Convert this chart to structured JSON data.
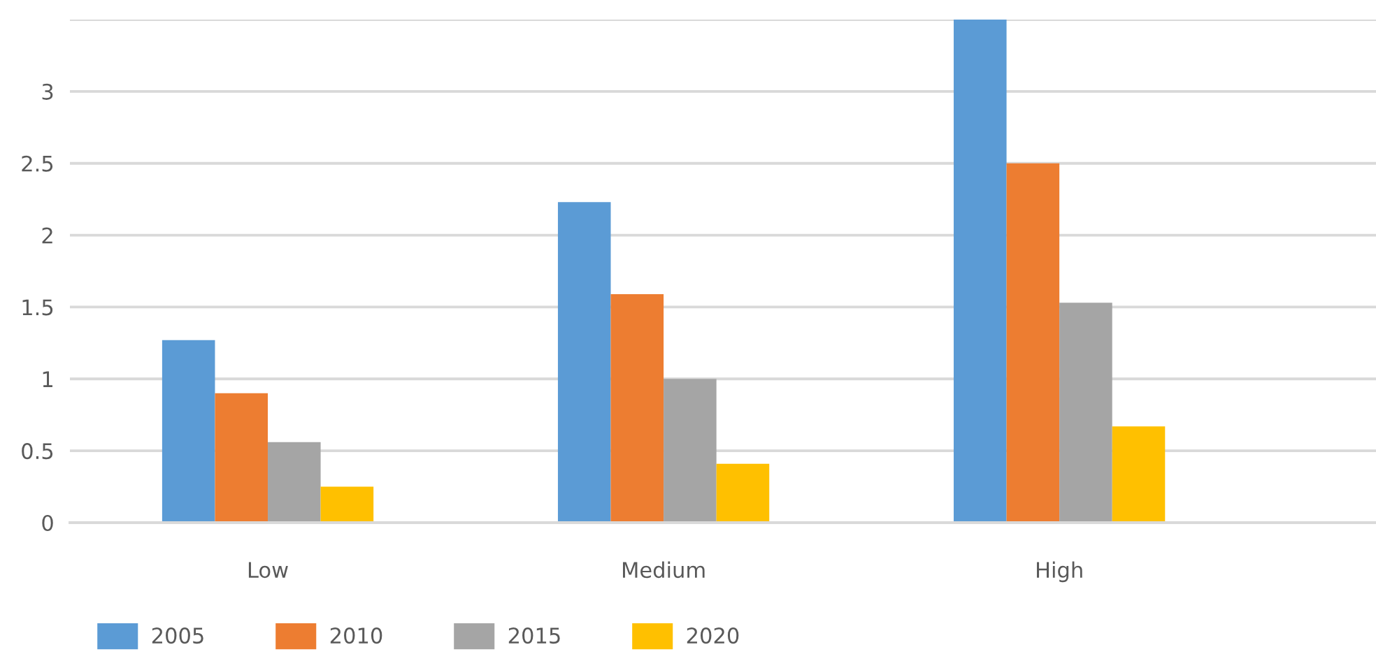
{
  "chart_data": {
    "type": "bar",
    "categories": [
      "Low",
      "Medium",
      "High"
    ],
    "series": [
      {
        "name": "2005",
        "color": "#5b9bd5",
        "values": [
          1.27,
          2.23,
          3.5
        ]
      },
      {
        "name": "2010",
        "color": "#ed7d31",
        "values": [
          0.9,
          1.59,
          2.5
        ]
      },
      {
        "name": "2015",
        "color": "#a5a5a5",
        "values": [
          0.56,
          1.0,
          1.53
        ]
      },
      {
        "name": "2020",
        "color": "#ffc000",
        "values": [
          0.25,
          0.41,
          0.67
        ]
      }
    ],
    "ylim": [
      0,
      3.5
    ],
    "yticks": [
      0,
      0.5,
      1,
      1.5,
      2,
      2.5,
      3,
      {
        "value": 3.5,
        "label": null
      }
    ],
    "grid": "y",
    "legend": "bottom left"
  }
}
